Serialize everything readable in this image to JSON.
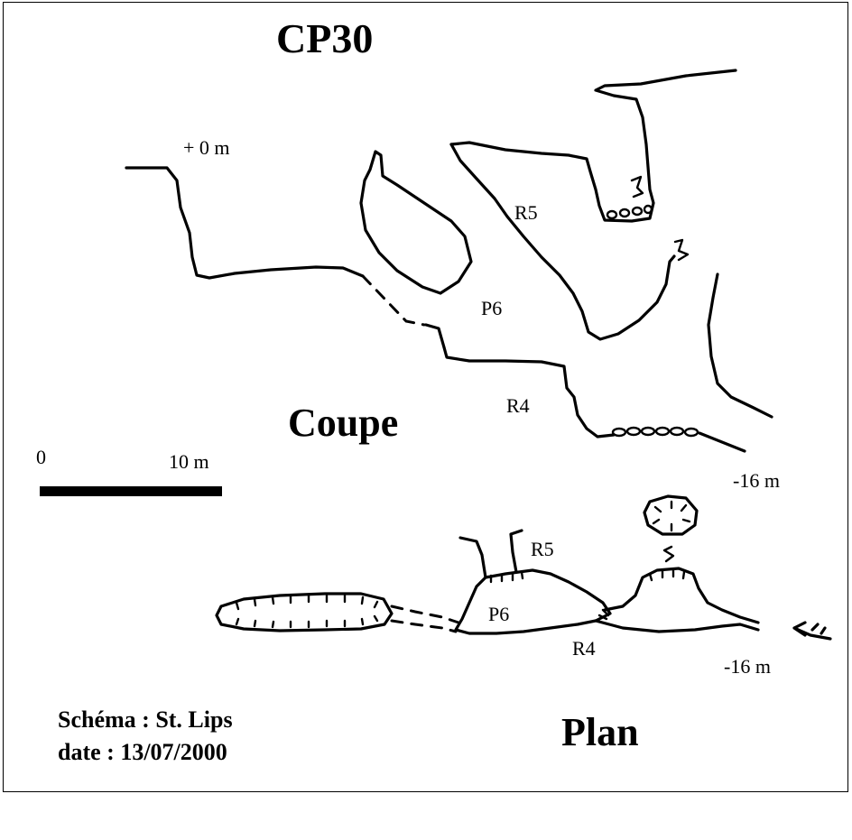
{
  "title": "CP30",
  "coupe": {
    "heading": "Coupe",
    "depth_top": "+ 0 m",
    "depth_bottom": "-16 m",
    "labels": {
      "r5": "R5",
      "p6": "P6",
      "r4": "R4"
    }
  },
  "plan": {
    "heading": "Plan",
    "depth": "-16 m",
    "labels": {
      "r5": "R5",
      "p6": "P6",
      "r4": "R4"
    }
  },
  "scale": {
    "start_label": "0",
    "end_label": "10 m"
  },
  "credits": {
    "author_line": "Schéma : St. Lips",
    "date_line": "date : 13/07/2000"
  }
}
